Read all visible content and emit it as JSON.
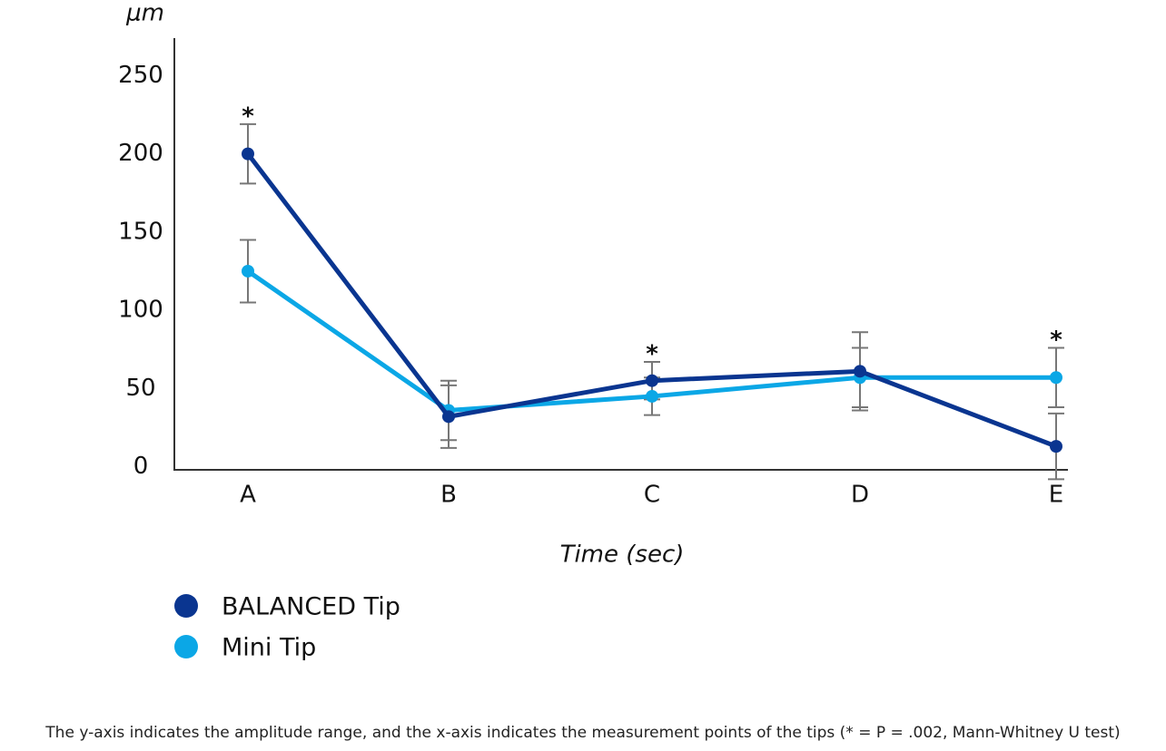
{
  "chart_data": {
    "type": "line",
    "y_label": "μm",
    "x_label": "Time (sec)",
    "caption": "The y-axis indicates the amplitude range, and the x-axis indicates the measurement points of the tips (* = P = .002, Mann-Whitney U test)",
    "categories": [
      "A",
      "B",
      "C",
      "D",
      "E"
    ],
    "series": [
      {
        "name": "BALANCED Tip",
        "color": "#0a3590",
        "values": [
          200,
          32,
          55,
          61,
          13
        ],
        "errors": [
          19,
          20,
          12,
          25,
          21
        ]
      },
      {
        "name": "Mini Tip",
        "color": "#0ba7e6",
        "values": [
          125,
          36,
          45,
          57,
          57
        ],
        "errors": [
          20,
          19,
          12,
          19,
          19
        ]
      }
    ],
    "annotations": [
      {
        "text": "*",
        "x": "A"
      },
      {
        "text": "*",
        "x": "C"
      },
      {
        "text": "*",
        "x": "E"
      }
    ],
    "ylim": [
      -2,
      274
    ],
    "yticks": [
      0,
      50,
      100,
      150,
      200,
      250
    ],
    "grid": false,
    "legend": "bottom-left"
  }
}
